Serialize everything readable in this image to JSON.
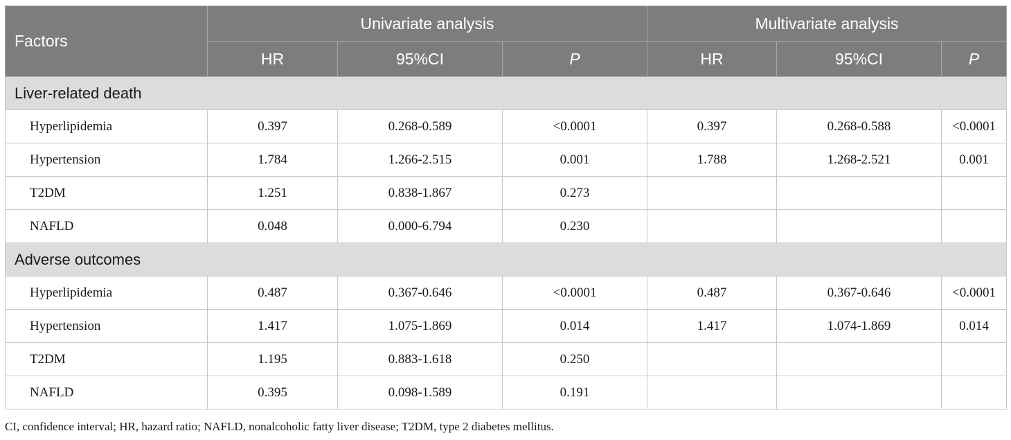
{
  "header": {
    "factors_label": "Factors",
    "univariate_label": "Univariate analysis",
    "multivariate_label": "Multivariate analysis",
    "hr_label": "HR",
    "ci_label": "95%CI",
    "p_label": "P"
  },
  "sections": [
    {
      "title": "Liver-related death",
      "rows": [
        {
          "factor": "Hyperlipidemia",
          "u_hr": "0.397",
          "u_ci": "0.268-0.589",
          "u_p": "<0.0001",
          "m_hr": "0.397",
          "m_ci": "0.268-0.588",
          "m_p": "<0.0001"
        },
        {
          "factor": "Hypertension",
          "u_hr": "1.784",
          "u_ci": "1.266-2.515",
          "u_p": "0.001",
          "m_hr": "1.788",
          "m_ci": "1.268-2.521",
          "m_p": "0.001"
        },
        {
          "factor": "T2DM",
          "u_hr": "1.251",
          "u_ci": "0.838-1.867",
          "u_p": "0.273",
          "m_hr": "",
          "m_ci": "",
          "m_p": ""
        },
        {
          "factor": "NAFLD",
          "u_hr": "0.048",
          "u_ci": "0.000-6.794",
          "u_p": "0.230",
          "m_hr": "",
          "m_ci": "",
          "m_p": ""
        }
      ]
    },
    {
      "title": "Adverse outcomes",
      "rows": [
        {
          "factor": "Hyperlipidemia",
          "u_hr": "0.487",
          "u_ci": "0.367-0.646",
          "u_p": "<0.0001",
          "m_hr": "0.487",
          "m_ci": "0.367-0.646",
          "m_p": "<0.0001"
        },
        {
          "factor": "Hypertension",
          "u_hr": "1.417",
          "u_ci": "1.075-1.869",
          "u_p": "0.014",
          "m_hr": "1.417",
          "m_ci": "1.074-1.869",
          "m_p": "0.014"
        },
        {
          "factor": "T2DM",
          "u_hr": "1.195",
          "u_ci": "0.883-1.618",
          "u_p": "0.250",
          "m_hr": "",
          "m_ci": "",
          "m_p": ""
        },
        {
          "factor": "NAFLD",
          "u_hr": "0.395",
          "u_ci": "0.098-1.589",
          "u_p": "0.191",
          "m_hr": "",
          "m_ci": "",
          "m_p": ""
        }
      ]
    }
  ],
  "footnote": "CI, confidence interval; HR, hazard ratio; NAFLD, nonalcoholic fatty liver disease; T2DM, type 2 diabetes mellitus.",
  "colors": {
    "header_bg": "#7d7d7d",
    "section_bg": "#dcdcdc",
    "border": "#c8c8c8"
  }
}
